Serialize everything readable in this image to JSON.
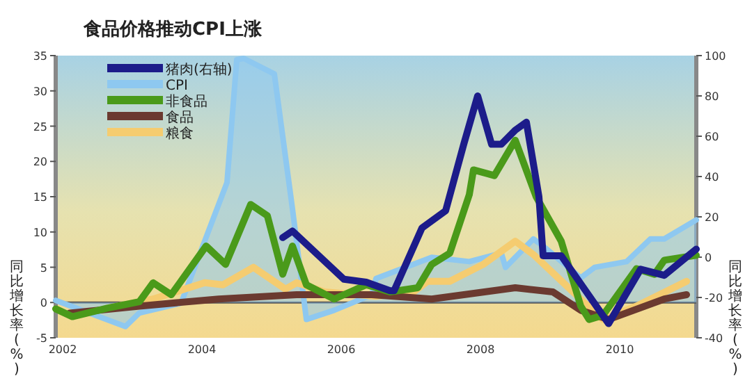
{
  "chart_data": {
    "type": "line",
    "title": "食品价格推动CPI上涨",
    "ylabel": "同比增长率(%)",
    "y2label": "同比增长率(%)",
    "xlim": [
      2001.9,
      2011.1
    ],
    "xticks": [
      2002,
      2004,
      2006,
      2008,
      2010
    ],
    "ylim": [
      -5,
      35
    ],
    "yticks": [
      -5,
      0,
      5,
      10,
      15,
      20,
      25,
      30,
      35
    ],
    "y2lim": [
      -40,
      100
    ],
    "y2ticks": [
      -40,
      -20,
      0,
      20,
      40,
      60,
      80,
      100
    ],
    "legend": "top left",
    "ref_lines": [
      {
        "axis": "y",
        "value": 0,
        "color": "#555555"
      }
    ],
    "series": [
      {
        "name": "猪肉(右轴)",
        "type": "line",
        "axis": "y2",
        "color": "#1c1c8a",
        "x": [
          2005.16,
          2005.3,
          2006.04,
          2006.36,
          2006.7,
          2006.76,
          2007.16,
          2007.5,
          2007.76,
          2007.96,
          2008.16,
          2008.3,
          2008.5,
          2008.66,
          2008.84,
          2008.9,
          2009.16,
          2009.84,
          2010.3,
          2010.64,
          2011.1
        ],
        "values": [
          9.7,
          13,
          -11,
          -12.4,
          -16.6,
          -16.6,
          14.5,
          23,
          56,
          80,
          56,
          56,
          63,
          67,
          30,
          0.7,
          0.7,
          -33,
          -6,
          -9,
          4
        ]
      },
      {
        "name": "CPI",
        "type": "area",
        "axis": "y",
        "color": "#8ec8f0",
        "x": [
          2001.9,
          2002.9,
          2003.1,
          2003.7,
          2004.36,
          2004.5,
          2004.6,
          2005.04,
          2005.3,
          2005.5,
          2005.9,
          2006.44,
          2006.5,
          2007.3,
          2007.84,
          2008.3,
          2008.36,
          2008.76,
          2008.9,
          2009.44,
          2009.64,
          2010.1,
          2010.44,
          2010.64,
          2011.1
        ],
        "values": [
          0.3,
          -3.4,
          -1.5,
          -0.1,
          17,
          34.4,
          34.6,
          32.4,
          13.3,
          -2.4,
          -1.1,
          1.1,
          3.4,
          6.4,
          5.8,
          7,
          5,
          9,
          8,
          3.5,
          5,
          5.8,
          9,
          9,
          11.7
        ]
      },
      {
        "name": "非食品",
        "type": "line",
        "axis": "y",
        "color": "#4a9a1a",
        "x": [
          2001.9,
          2002.14,
          2002.64,
          2003.1,
          2003.3,
          2003.56,
          2004.06,
          2004.34,
          2004.7,
          2004.94,
          2005.16,
          2005.3,
          2005.5,
          2005.9,
          2006.36,
          2006.7,
          2007.1,
          2007.3,
          2007.56,
          2007.84,
          2007.9,
          2008.2,
          2008.5,
          2008.8,
          2009.16,
          2009.44,
          2009.56,
          2009.76,
          2010.24,
          2010.5,
          2010.64,
          2011.1
        ],
        "values": [
          -0.9,
          -2,
          -0.8,
          0.1,
          2.8,
          1.1,
          8,
          5.4,
          13.9,
          12.3,
          4,
          8,
          2.5,
          0.5,
          2.5,
          1.5,
          2.1,
          5.4,
          7,
          15.3,
          18.8,
          18,
          23,
          15,
          8.7,
          -0.5,
          -2.4,
          -1.8,
          4.8,
          4,
          6,
          6.7
        ]
      },
      {
        "name": "食品",
        "type": "line",
        "axis": "y",
        "color": "#6b3a30",
        "x": [
          2002.1,
          2003.1,
          2004.24,
          2005.36,
          2006.44,
          2007.3,
          2008.5,
          2009.04,
          2009.44,
          2009.84,
          2010.64,
          2010.96
        ],
        "values": [
          -1.5,
          -0.5,
          0.5,
          1.1,
          1.1,
          0.5,
          2.1,
          1.5,
          -1.1,
          -2.4,
          0.5,
          1.1
        ]
      },
      {
        "name": "粮食",
        "type": "line",
        "axis": "y",
        "color": "#f5cc70",
        "x": [
          2002.64,
          2003.3,
          2004.04,
          2004.3,
          2004.74,
          2005.2,
          2005.36,
          2005.76,
          2006.5,
          2007.04,
          2007.24,
          2007.56,
          2008.04,
          2008.5,
          2008.76,
          2009.5,
          2009.76,
          2010.24,
          2010.96
        ],
        "values": [
          -0.8,
          0.5,
          2.8,
          2.5,
          5,
          1.9,
          2.8,
          1.5,
          0.9,
          1.5,
          3,
          3,
          5.4,
          8.7,
          6.8,
          -0.1,
          -2.4,
          -0.5,
          3
        ]
      }
    ]
  }
}
